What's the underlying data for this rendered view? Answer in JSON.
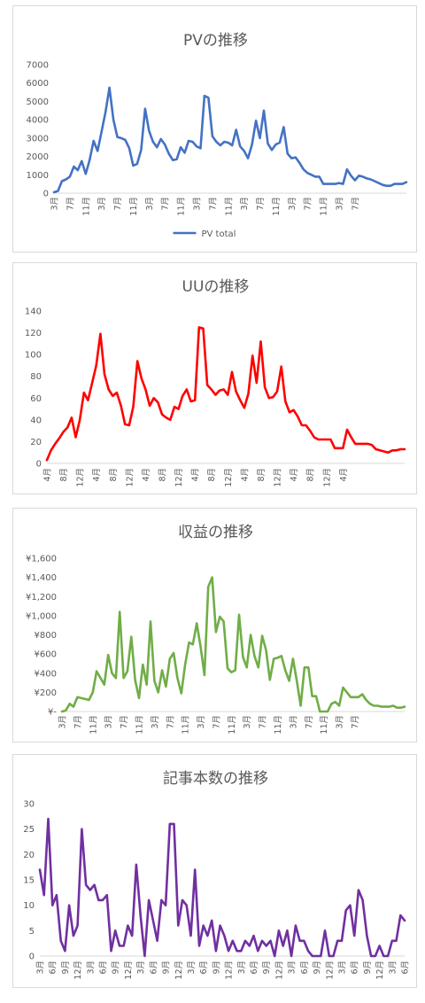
{
  "charts": [
    {
      "id": "pv",
      "type": "line",
      "title": "PVの推移",
      "color": "#4472c4",
      "ylim": [
        0,
        7000
      ],
      "yticks": [
        0,
        1000,
        2000,
        3000,
        4000,
        5000,
        6000,
        7000
      ],
      "ytick_labels": [
        "0",
        "1000",
        "2000",
        "3000",
        "4000",
        "5000",
        "6000",
        "7000"
      ],
      "xtick_labels": [
        "3月",
        "7月",
        "11月",
        "3月",
        "7月",
        "11月",
        "3月",
        "7月",
        "11月",
        "3月",
        "7月",
        "11月",
        "3月",
        "7月",
        "11月",
        "3月",
        "7月",
        "11月",
        "3月",
        "7月"
      ],
      "xtick_step": 4,
      "legend": [
        "PV total"
      ],
      "series": [
        {
          "name": "PV total",
          "values": [
            50,
            120,
            650,
            750,
            900,
            1450,
            1250,
            1750,
            1050,
            1800,
            2850,
            2300,
            3350,
            4400,
            5750,
            4000,
            3050,
            3000,
            2900,
            2450,
            1500,
            1600,
            2350,
            4600,
            3400,
            2800,
            2500,
            2950,
            2650,
            2150,
            1800,
            1850,
            2500,
            2200,
            2850,
            2800,
            2550,
            2450,
            5300,
            5200,
            3100,
            2800,
            2600,
            2800,
            2750,
            2600,
            3450,
            2550,
            2300,
            1900,
            2650,
            3950,
            3000,
            4500,
            2700,
            2350,
            2650,
            2750,
            3600,
            2150,
            1900,
            1950,
            1650,
            1300,
            1100,
            1000,
            900,
            900,
            500,
            500,
            500,
            500,
            550,
            500,
            1300,
            950,
            700,
            950,
            900,
            800,
            750,
            650,
            550,
            450,
            400,
            400,
            500,
            500,
            500,
            600
          ]
        }
      ]
    },
    {
      "id": "uu",
      "type": "line",
      "title": "UUの推移",
      "color": "#ff0000",
      "ylim": [
        0,
        140
      ],
      "yticks": [
        0,
        20,
        40,
        60,
        80,
        100,
        120,
        140
      ],
      "ytick_labels": [
        "0",
        "20",
        "40",
        "60",
        "80",
        "100",
        "120",
        "140"
      ],
      "xtick_labels": [
        "4月",
        "8月",
        "12月",
        "4月",
        "8月",
        "12月",
        "4月",
        "8月",
        "12月",
        "4月",
        "8月",
        "12月",
        "4月",
        "8月",
        "12月",
        "4月",
        "8月",
        "12月",
        "4月"
      ],
      "xtick_step": 4,
      "legend": [],
      "series": [
        {
          "name": "",
          "values": [
            3,
            12,
            18,
            23,
            29,
            33,
            42,
            24,
            40,
            65,
            58,
            74,
            90,
            119,
            82,
            68,
            62,
            65,
            53,
            36,
            35,
            52,
            94,
            78,
            68,
            53,
            60,
            56,
            45,
            42,
            40,
            52,
            50,
            62,
            68,
            57,
            58,
            125,
            124,
            72,
            68,
            63,
            67,
            68,
            63,
            84,
            66,
            58,
            51,
            64,
            99,
            74,
            112,
            70,
            60,
            61,
            66,
            89,
            57,
            47,
            49,
            43,
            35,
            35,
            30,
            24,
            22,
            22,
            22,
            22,
            14,
            14,
            14,
            31,
            24,
            18,
            18,
            18,
            18,
            17,
            13,
            12,
            11,
            10,
            12,
            12,
            13,
            13
          ]
        }
      ]
    },
    {
      "id": "revenue",
      "type": "line",
      "title": "収益の推移",
      "color": "#70ad47",
      "ylim": [
        0,
        1600
      ],
      "yticks": [
        0,
        200,
        400,
        600,
        800,
        1000,
        1200,
        1400,
        1600
      ],
      "ytick_labels": [
        "¥-",
        "¥200",
        "¥400",
        "¥600",
        "¥800",
        "¥1,000",
        "¥1,200",
        "¥1,400",
        "¥1,600"
      ],
      "xtick_labels": [
        "3月",
        "7月",
        "11月",
        "3月",
        "7月",
        "11月",
        "3月",
        "7月",
        "11月",
        "3月",
        "7月",
        "11月",
        "3月",
        "7月",
        "11月",
        "3月",
        "7月",
        "11月",
        "3月",
        "7月"
      ],
      "xtick_step": 4,
      "legend": [],
      "series": [
        {
          "name": "",
          "values": [
            0,
            10,
            80,
            50,
            150,
            140,
            130,
            120,
            200,
            420,
            350,
            280,
            590,
            400,
            350,
            1040,
            350,
            420,
            780,
            330,
            140,
            490,
            280,
            940,
            320,
            200,
            430,
            260,
            550,
            610,
            350,
            190,
            490,
            720,
            700,
            920,
            680,
            380,
            1300,
            1400,
            830,
            990,
            940,
            450,
            410,
            430,
            1010,
            570,
            460,
            800,
            580,
            460,
            790,
            640,
            330,
            550,
            560,
            580,
            430,
            320,
            550,
            320,
            60,
            460,
            460,
            160,
            160,
            0,
            0,
            0,
            80,
            100,
            60,
            250,
            200,
            150,
            150,
            150,
            180,
            120,
            80,
            60,
            60,
            50,
            50,
            50,
            60,
            40,
            40,
            50
          ]
        }
      ]
    },
    {
      "id": "articles",
      "type": "line",
      "title": "記事本数の推移",
      "color": "#7030a0",
      "ylim": [
        0,
        30
      ],
      "yticks": [
        0,
        5,
        10,
        15,
        20,
        25,
        30
      ],
      "ytick_labels": [
        "0",
        "5",
        "10",
        "15",
        "20",
        "25",
        "30"
      ],
      "xtick_labels": [
        "3月",
        "6月",
        "9月",
        "12月",
        "3月",
        "6月",
        "9月",
        "12月",
        "3月",
        "6月",
        "9月",
        "12月",
        "3月",
        "6月",
        "9月",
        "12月",
        "3月",
        "6月",
        "9月",
        "12月",
        "3月",
        "6月",
        "9月",
        "12月",
        "3月",
        "6月",
        "9月",
        "12月",
        "3月",
        "6月"
      ],
      "xtick_step": 3,
      "legend": [],
      "series": [
        {
          "name": "",
          "values": [
            17,
            12,
            27,
            10,
            12,
            3,
            1,
            10,
            4,
            6,
            25,
            14,
            13,
            14,
            11,
            11,
            12,
            1,
            5,
            2,
            2,
            6,
            4,
            18,
            8,
            0,
            11,
            7,
            3,
            11,
            10,
            26,
            26,
            6,
            11,
            10,
            4,
            17,
            2,
            6,
            4,
            7,
            1,
            6,
            4,
            1,
            3,
            1,
            1,
            3,
            2,
            4,
            1,
            3,
            2,
            3,
            0,
            5,
            2,
            5,
            0,
            6,
            3,
            3,
            1,
            0,
            0,
            0,
            5,
            0,
            0,
            3,
            3,
            9,
            10,
            4,
            13,
            11,
            4,
            0,
            0,
            2,
            0,
            0,
            3,
            3,
            8,
            7
          ]
        }
      ]
    }
  ]
}
